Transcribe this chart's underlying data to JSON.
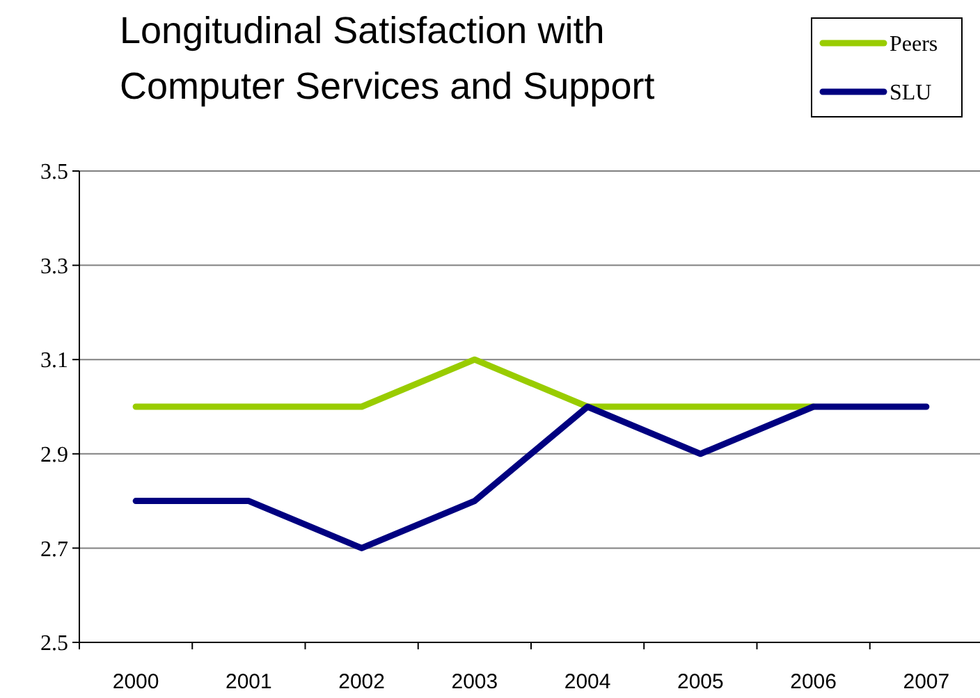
{
  "chart_data": {
    "type": "line",
    "title": "Longitudinal Satisfaction with\nComputer Services and Support",
    "categories": [
      "2000",
      "2001",
      "2002",
      "2003",
      "2004",
      "2005",
      "2006",
      "2007"
    ],
    "series": [
      {
        "name": "Peers",
        "color": "#99cc00",
        "values": [
          3.0,
          3.0,
          3.0,
          3.1,
          3.0,
          3.0,
          3.0,
          null
        ]
      },
      {
        "name": "SLU",
        "color": "#000080",
        "values": [
          2.8,
          2.8,
          2.7,
          2.8,
          3.0,
          2.9,
          3.0,
          3.0
        ]
      }
    ],
    "ylim": [
      2.5,
      3.5
    ],
    "yticks": [
      2.5,
      2.7,
      2.9,
      3.1,
      3.3,
      3.5
    ],
    "grid": "y",
    "legend": "top right"
  }
}
